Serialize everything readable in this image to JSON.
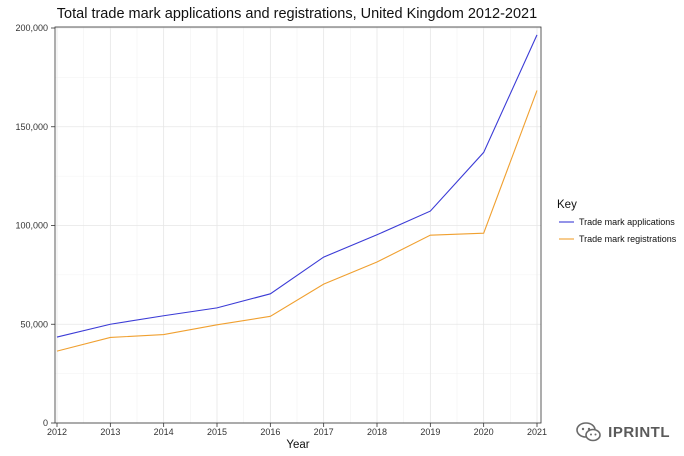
{
  "chart_data": {
    "type": "line",
    "title": "Total trade mark applications and registrations, United Kingdom 2012-2021",
    "xlabel": "Year",
    "ylabel": "",
    "x": [
      2012,
      2013,
      2014,
      2015,
      2016,
      2017,
      2018,
      2019,
      2020,
      2021
    ],
    "xlim": [
      2012,
      2021
    ],
    "ylim": [
      0,
      200000
    ],
    "yticks": [
      0,
      50000,
      100000,
      150000,
      200000
    ],
    "ytick_labels": [
      "0",
      "50,000",
      "100,000",
      "150,000",
      "200,000"
    ],
    "grid": true,
    "legend": {
      "title": "Key",
      "position": "right"
    },
    "series": [
      {
        "name": "Trade mark applications",
        "color": "#3b3bd6",
        "values": [
          43500,
          50000,
          54300,
          58300,
          65400,
          84000,
          95300,
          107300,
          137000,
          196500
        ]
      },
      {
        "name": "Trade mark registrations",
        "color": "#f0a030",
        "values": [
          36400,
          43300,
          44800,
          49700,
          54000,
          70300,
          81500,
          95100,
          96100,
          168400
        ]
      }
    ]
  },
  "watermark": {
    "text": "IPRINTL",
    "icon": "wechat-icon"
  }
}
